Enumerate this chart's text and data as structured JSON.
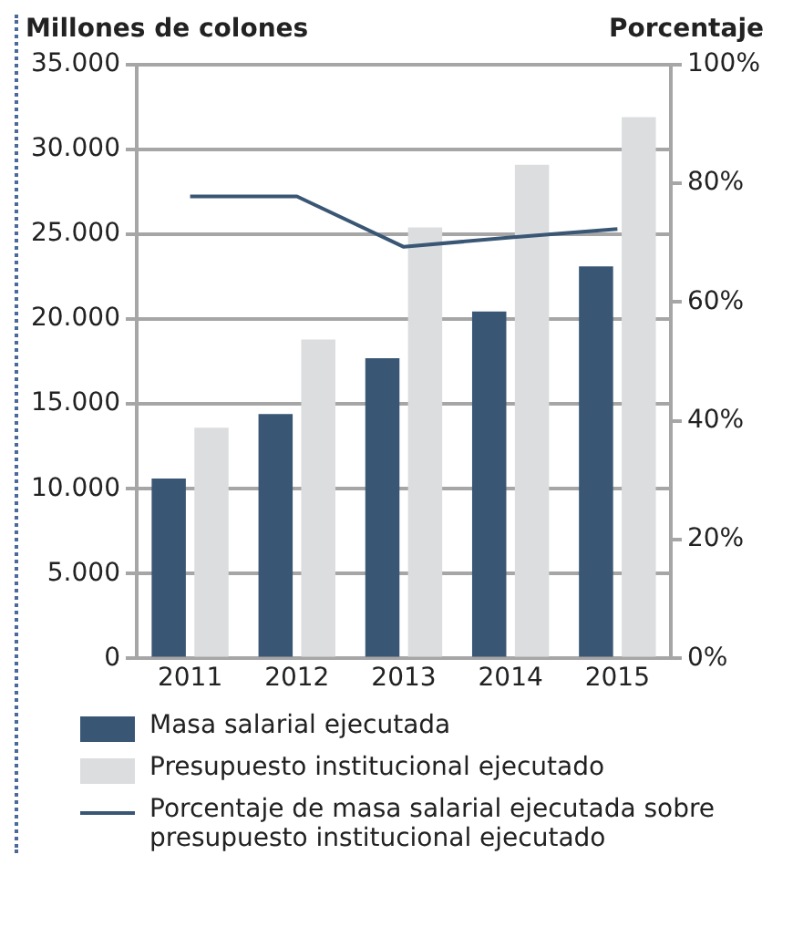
{
  "chart_data": {
    "type": "bar",
    "ylabel": "Millones de colones",
    "y2label": "Porcentaje",
    "categories": [
      "2011",
      "2012",
      "2013",
      "2014",
      "2015"
    ],
    "series": [
      {
        "name": "Masa salarial ejecutada",
        "color": "#3a5675",
        "values": [
          10600,
          14400,
          17700,
          20450,
          23100
        ]
      },
      {
        "name": "Presupuesto institucional ejecutado",
        "color": "#dcdddf",
        "values": [
          13600,
          18800,
          25400,
          29100,
          31900
        ]
      },
      {
        "name": "Porcentaje de masa salarial ejecutada sobre presupuesto institucional ejecutado",
        "type": "line",
        "axis": "y2",
        "color": "#3a5675",
        "values": [
          77.8,
          77.8,
          69.3,
          70.9,
          72.3
        ]
      }
    ],
    "ylim": [
      0,
      35000
    ],
    "yticks": [
      {
        "value": 0,
        "label": "0"
      },
      {
        "value": 5000,
        "label": "5.000"
      },
      {
        "value": 10000,
        "label": "10.000"
      },
      {
        "value": 15000,
        "label": "15.000"
      },
      {
        "value": 20000,
        "label": "20.000"
      },
      {
        "value": 25000,
        "label": "25.000"
      },
      {
        "value": 30000,
        "label": "30.000"
      },
      {
        "value": 35000,
        "label": "35.000"
      }
    ],
    "y2lim": [
      0,
      100
    ],
    "y2ticks": [
      {
        "value": 0,
        "label": "0%"
      },
      {
        "value": 20,
        "label": "20%"
      },
      {
        "value": 40,
        "label": "40%"
      },
      {
        "value": 60,
        "label": "60%"
      },
      {
        "value": 80,
        "label": "80%"
      },
      {
        "value": 100,
        "label": "100%"
      }
    ],
    "grid": "y",
    "legend": "bottom",
    "marker": "none"
  }
}
